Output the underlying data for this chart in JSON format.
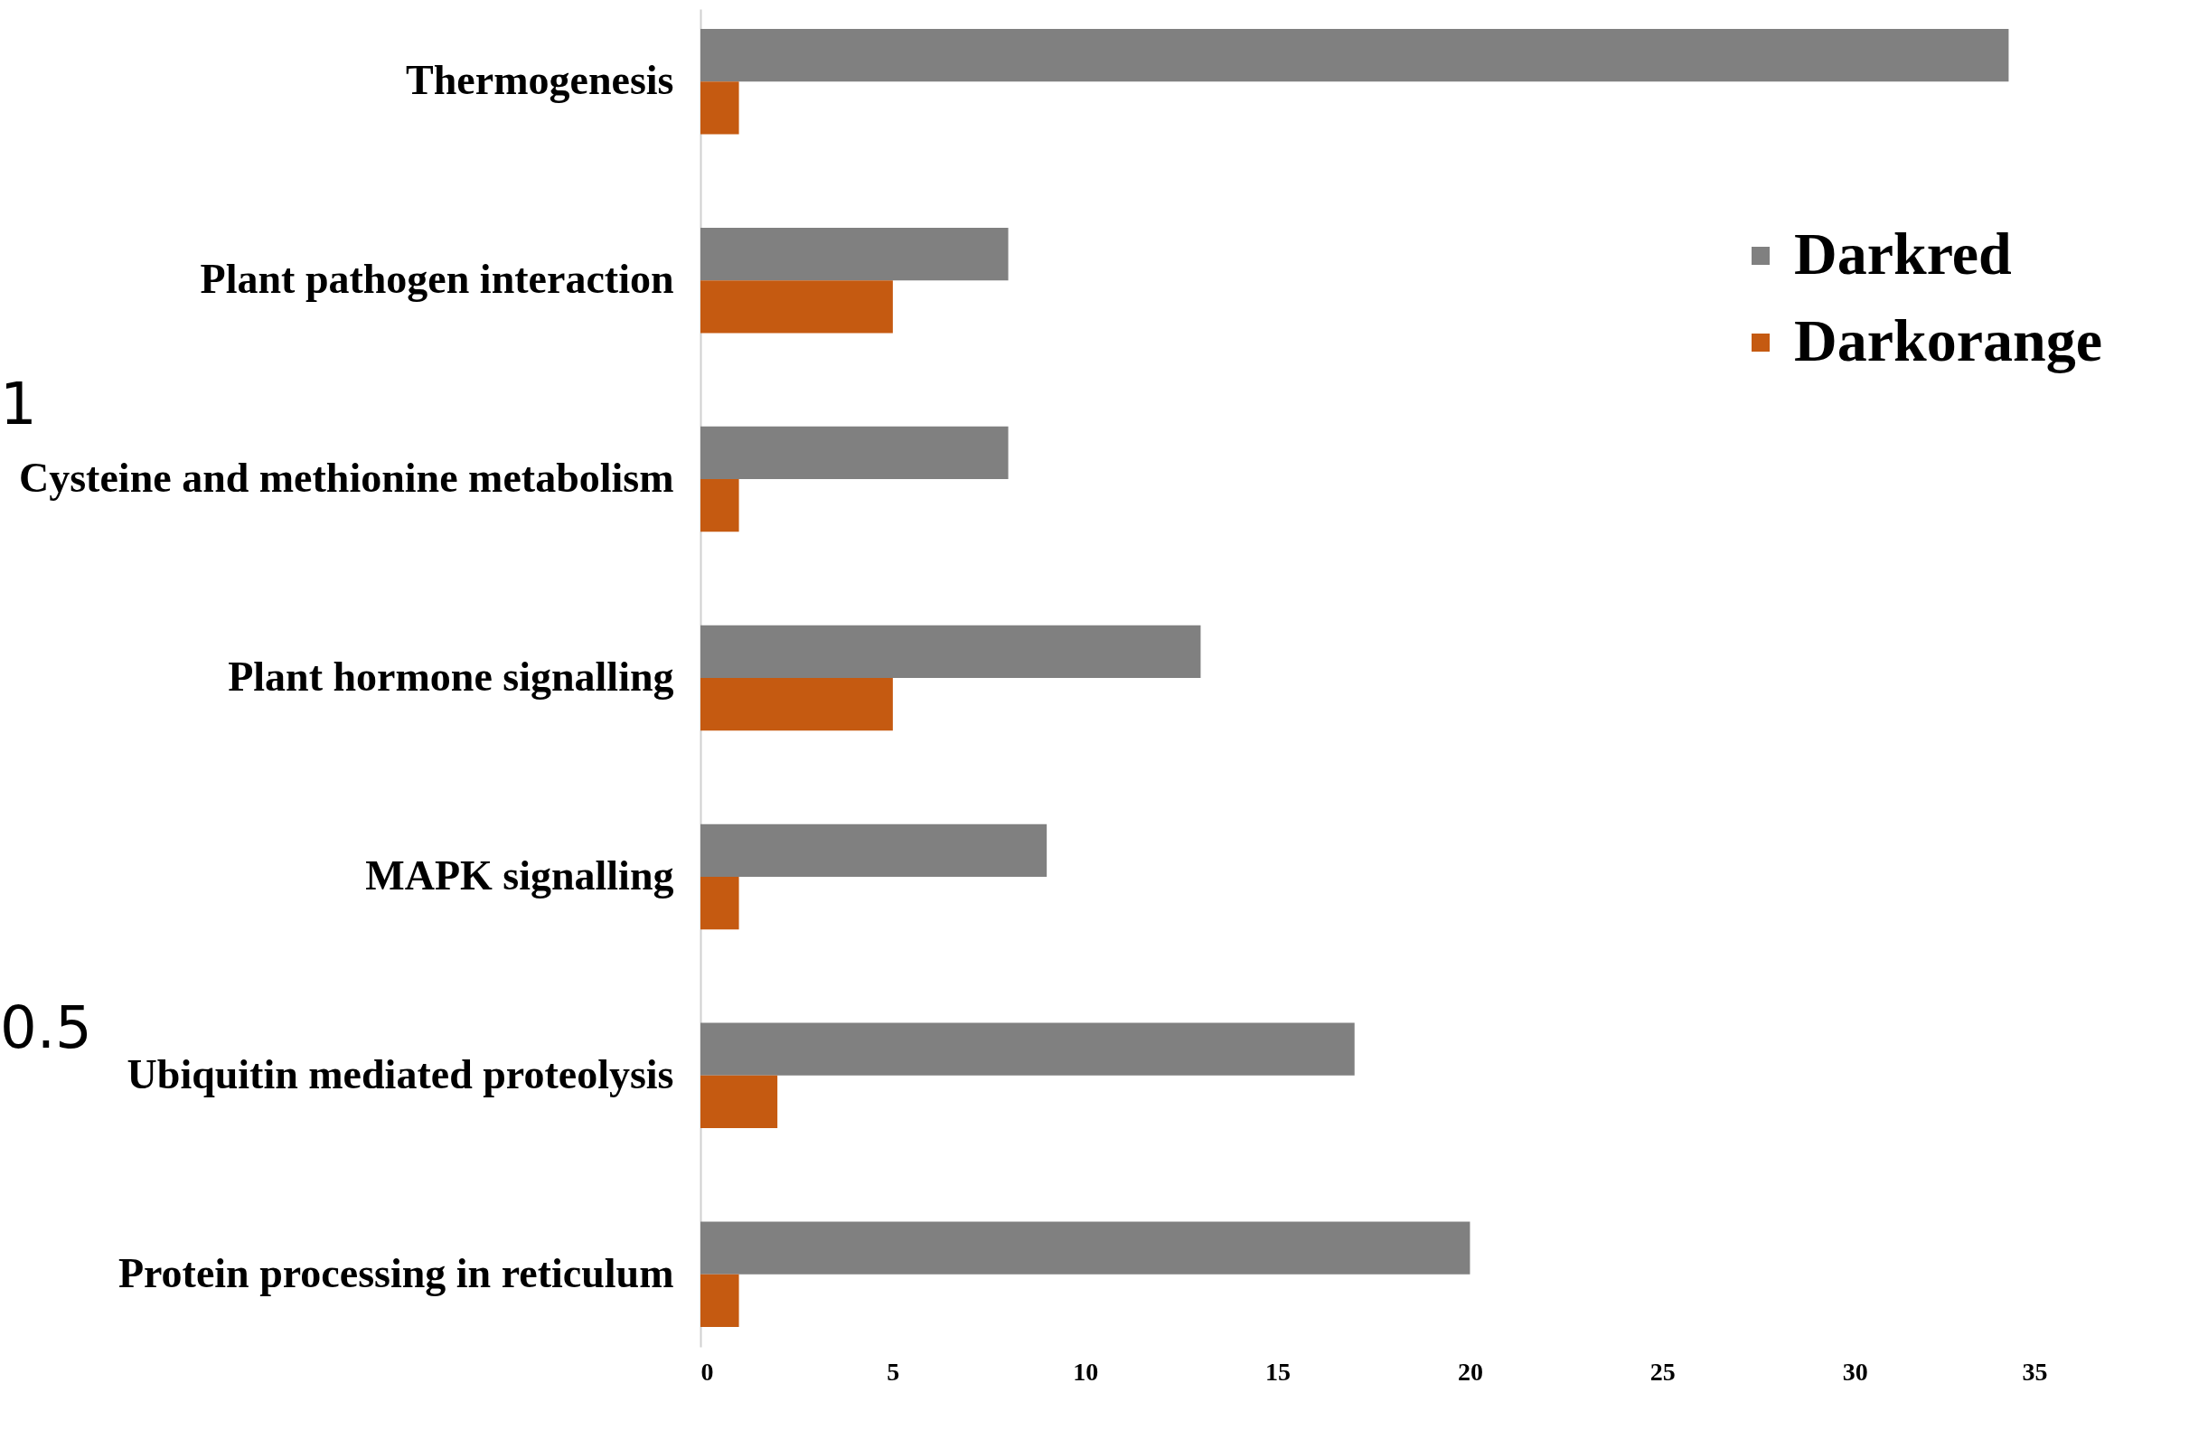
{
  "chart_data": {
    "type": "bar",
    "orientation": "horizontal",
    "categories": [
      "Thermogenesis",
      "Plant pathogen interaction",
      "Cysteine and methionine metabolism",
      "Plant hormone signalling",
      "MAPK signalling",
      "Ubiquitin mediated proteolysis",
      "Protein processing in reticulum"
    ],
    "series": [
      {
        "name": "Darkred",
        "color": "#808080",
        "values": [
          34,
          8,
          8,
          13,
          9,
          17,
          20
        ]
      },
      {
        "name": "Darkorange",
        "color": "#c55a11",
        "values": [
          1,
          5,
          1,
          5,
          1,
          2,
          1
        ]
      }
    ],
    "xlim": [
      0,
      35
    ],
    "xticks": [
      0,
      5,
      10,
      15,
      20,
      25,
      30,
      35
    ],
    "grid": false,
    "legend": "top right",
    "annotations": [
      "1",
      "0.5"
    ]
  }
}
